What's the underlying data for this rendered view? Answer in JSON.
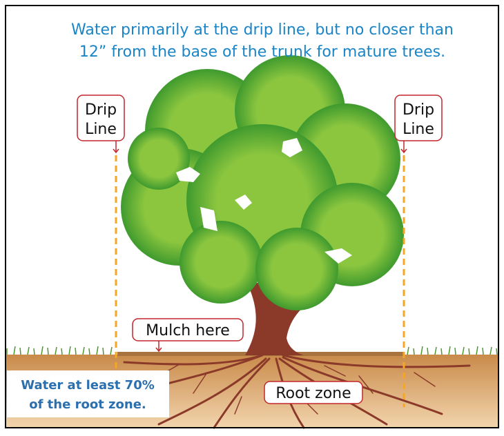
{
  "header": {
    "lines": [
      "Water primarily at the drip line, but no closer than",
      "12” from the base of the trunk for mature trees."
    ]
  },
  "labels": {
    "drip_left": [
      "Drip",
      "Line"
    ],
    "drip_right": [
      "Drip",
      "Line"
    ],
    "mulch": "Mulch here",
    "root_zone": "Root zone"
  },
  "note": {
    "lines": [
      "Water at least 70%",
      "of the root zone."
    ]
  }
}
